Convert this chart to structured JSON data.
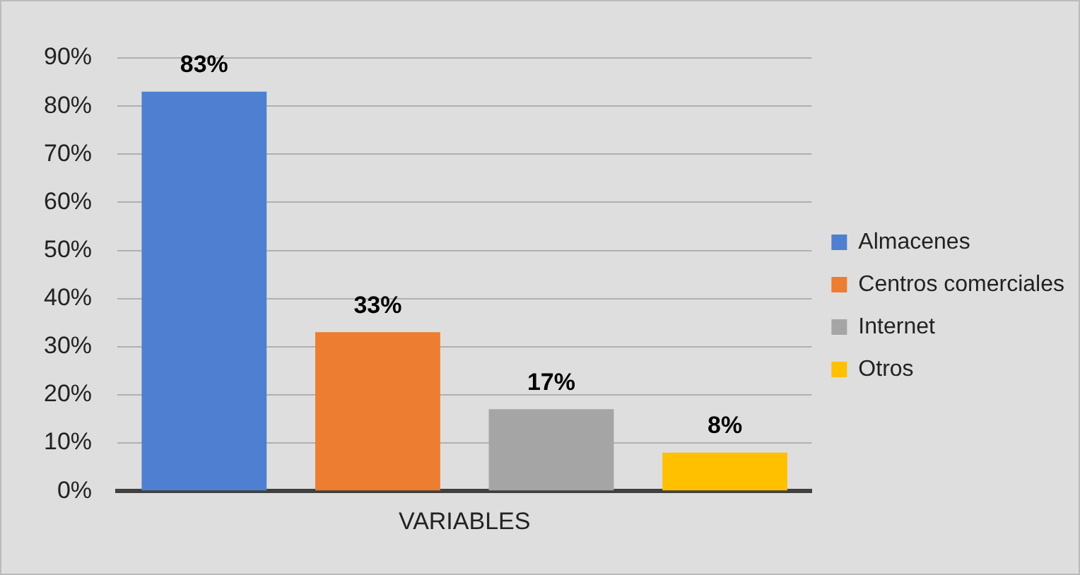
{
  "chart_data": {
    "type": "bar",
    "categories": [
      "VARIABLES"
    ],
    "series": [
      {
        "name": "Almacenes",
        "color": "#4f7fd0",
        "values": [
          83
        ],
        "value_labels": [
          "83%"
        ]
      },
      {
        "name": "Centros comerciales",
        "color": "#ed7d31",
        "values": [
          33
        ],
        "value_labels": [
          "33%"
        ]
      },
      {
        "name": "Internet",
        "color": "#a5a5a5",
        "values": [
          17
        ],
        "value_labels": [
          "17%"
        ]
      },
      {
        "name": "Otros",
        "color": "#ffc000",
        "values": [
          8
        ],
        "value_labels": [
          "8%"
        ]
      }
    ],
    "ylim": [
      0,
      90
    ],
    "yticks": [
      {
        "value": 0,
        "label": "0%"
      },
      {
        "value": 10,
        "label": "10%"
      },
      {
        "value": 20,
        "label": "20%"
      },
      {
        "value": 30,
        "label": "30%"
      },
      {
        "value": 40,
        "label": "40%"
      },
      {
        "value": 50,
        "label": "50%"
      },
      {
        "value": 60,
        "label": "60%"
      },
      {
        "value": 70,
        "label": "70%"
      },
      {
        "value": 80,
        "label": "80%"
      },
      {
        "value": 90,
        "label": "90%"
      }
    ],
    "grid": "y",
    "legend": "right"
  }
}
